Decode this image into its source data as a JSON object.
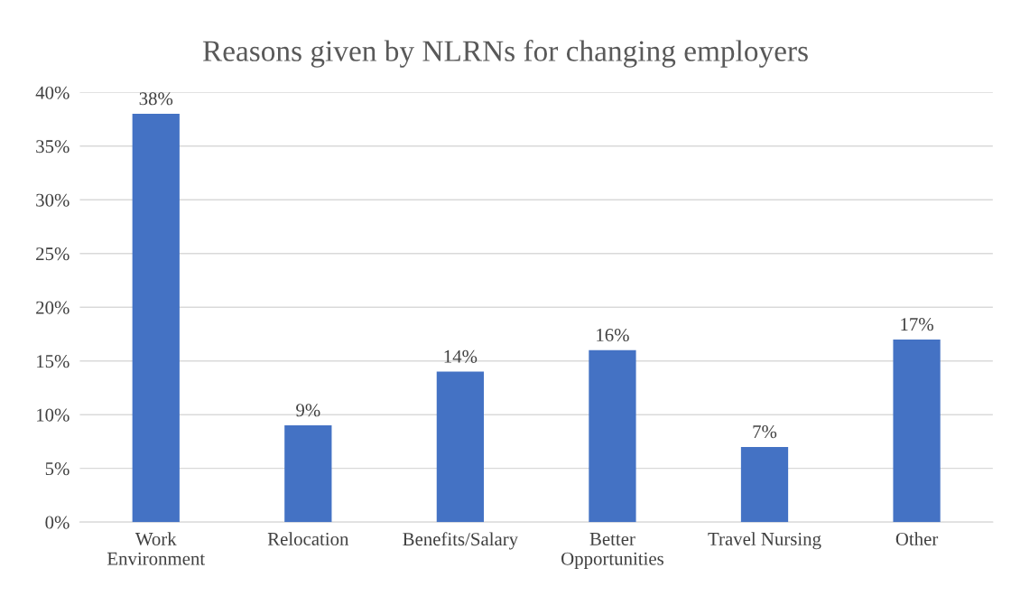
{
  "chart_data": {
    "type": "bar",
    "title": "Reasons given by NLRNs for changing employers",
    "categories": [
      "Work\nEnvironment",
      "Relocation",
      "Benefits/Salary",
      "Better\nOpportunities",
      "Travel Nursing",
      "Other"
    ],
    "values": [
      38,
      9,
      14,
      16,
      7,
      17
    ],
    "value_labels": [
      "38%",
      "9%",
      "14%",
      "16%",
      "7%",
      "17%"
    ],
    "color": "#4472c4",
    "ylim": [
      0,
      40
    ],
    "yticks": [
      {
        "value": 0,
        "label": "0%"
      },
      {
        "value": 5,
        "label": "5%"
      },
      {
        "value": 10,
        "label": "10%"
      },
      {
        "value": 15,
        "label": "15%"
      },
      {
        "value": 20,
        "label": "20%"
      },
      {
        "value": 25,
        "label": "25%"
      },
      {
        "value": 30,
        "label": "30%"
      },
      {
        "value": 35,
        "label": "35%"
      },
      {
        "value": 40,
        "label": "40%"
      }
    ],
    "grid": "y",
    "legend": false
  }
}
